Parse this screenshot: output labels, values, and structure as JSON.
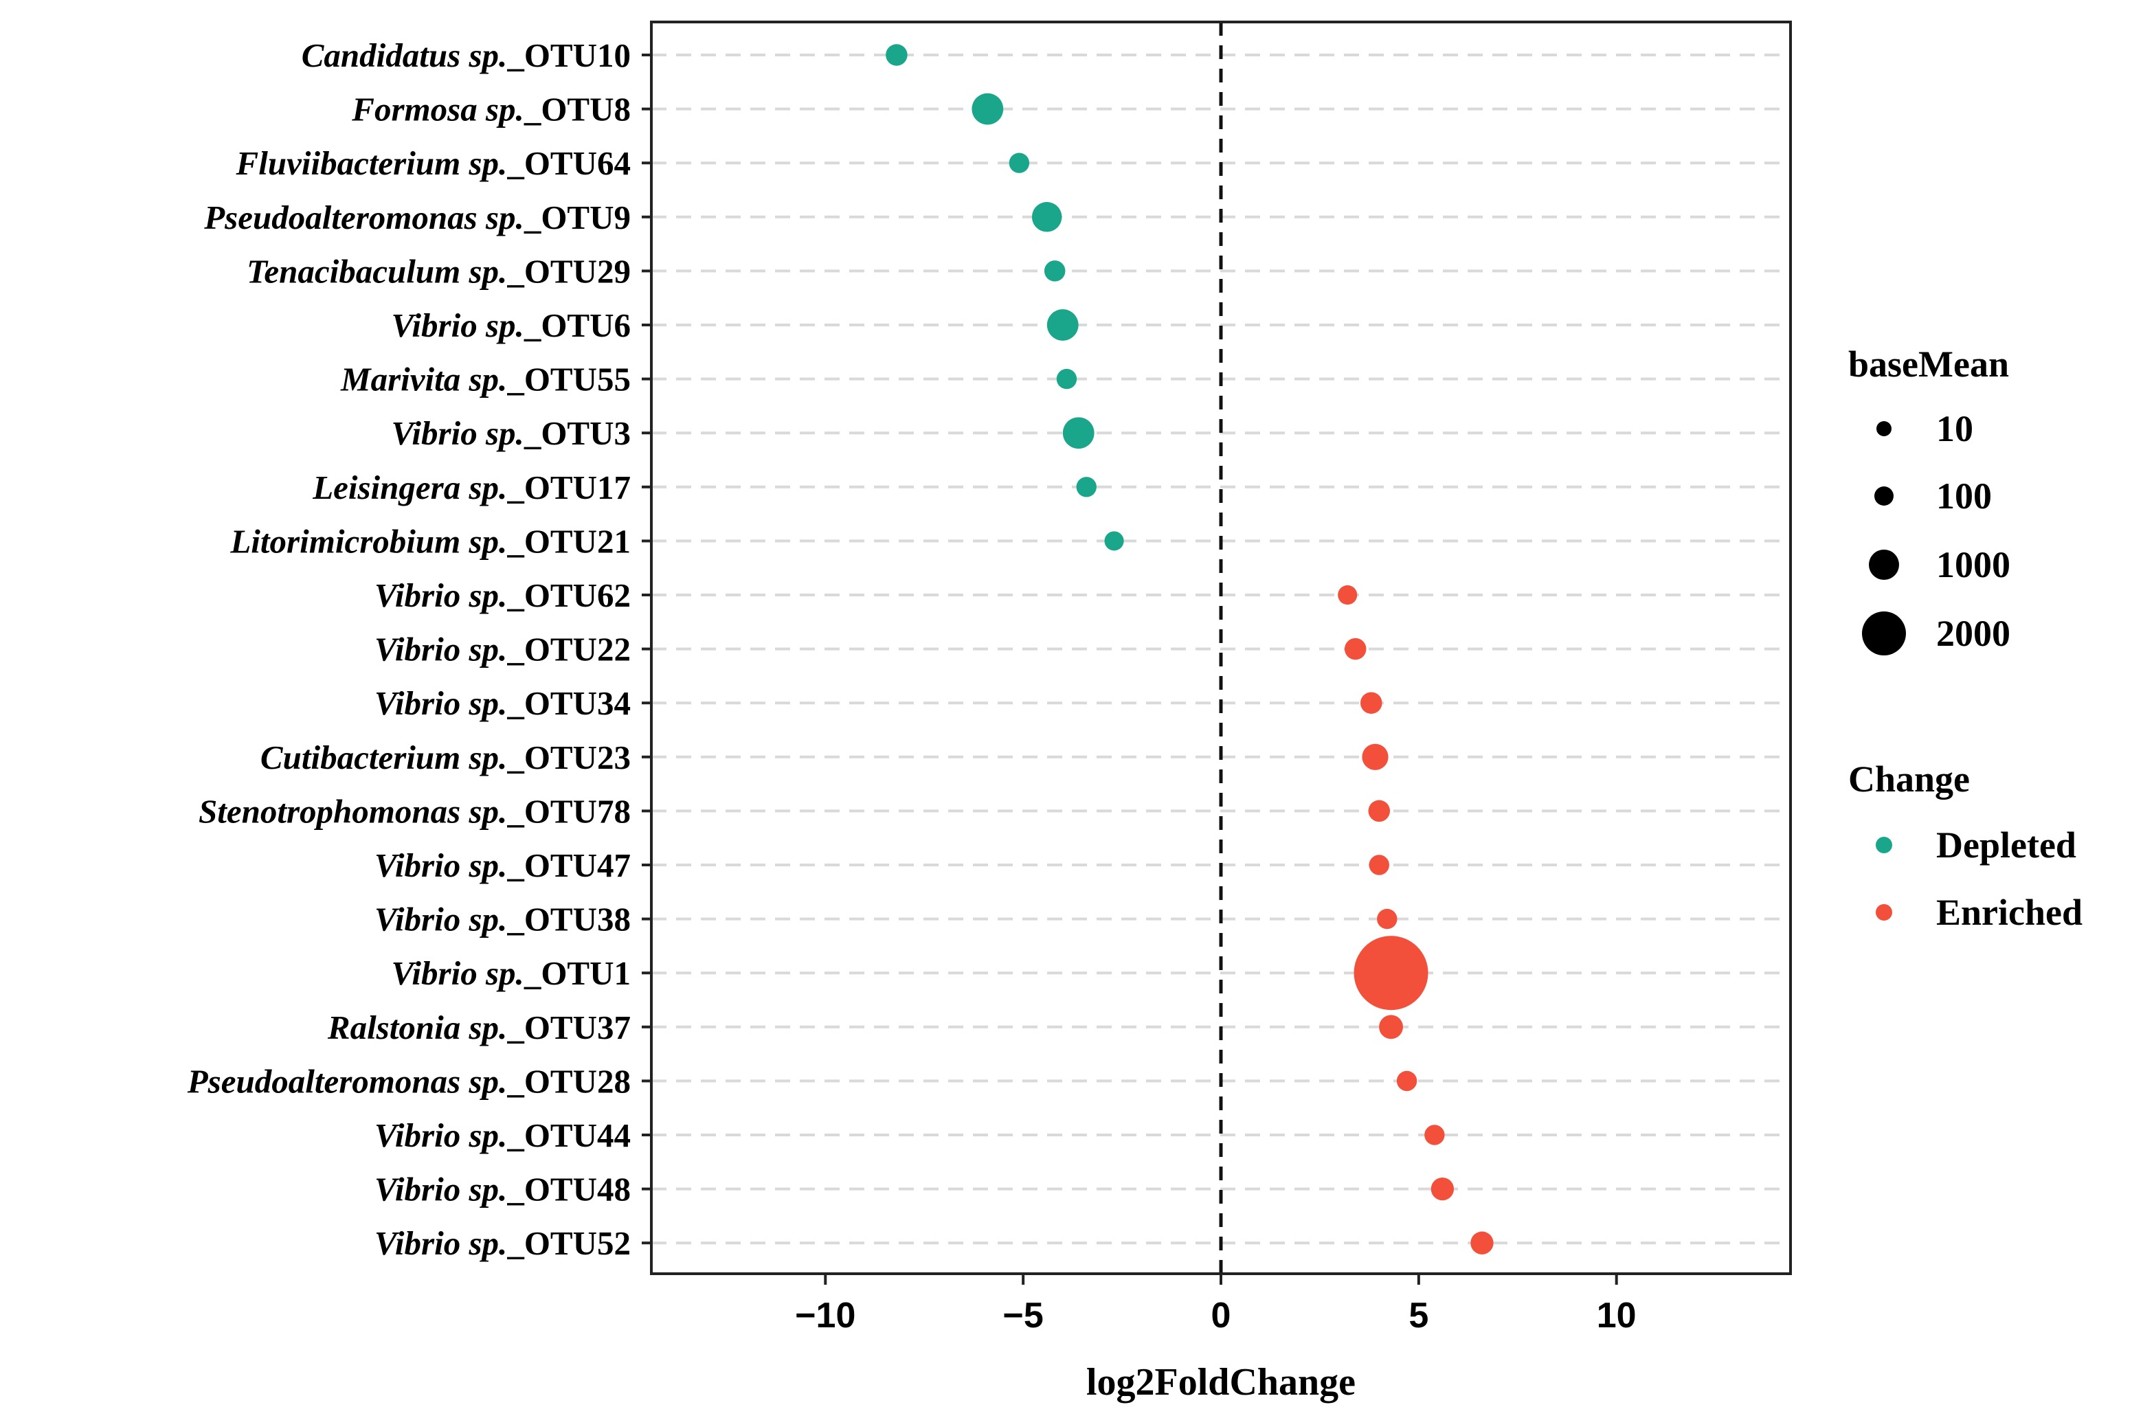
{
  "chart_data": {
    "type": "scatter",
    "title": "",
    "xlabel": "log2FoldChange",
    "ylabel": "",
    "xlim": [
      -14.4,
      14.4
    ],
    "xticks": [
      -10,
      -5,
      0,
      5,
      10
    ],
    "xtick_labels": [
      "−10",
      "−5",
      "0",
      "5",
      "10"
    ],
    "reference_line": 0,
    "grid": "horizontal dashed",
    "colors": {
      "Depleted": "#1aa68a",
      "Enriched": "#f2503b"
    },
    "points": [
      {
        "genus": "Candidatus sp.",
        "otu": "_OTU10",
        "log2FoldChange": -8.2,
        "baseMean": 60,
        "change": "Depleted"
      },
      {
        "genus": "Formosa sp.",
        "otu": "_OTU8",
        "log2FoldChange": -5.9,
        "baseMean": 300,
        "change": "Depleted"
      },
      {
        "genus": "Fluviibacterium sp.",
        "otu": "_OTU64",
        "log2FoldChange": -5.1,
        "baseMean": 40,
        "change": "Depleted"
      },
      {
        "genus": "Pseudoalteromonas sp.",
        "otu": "_OTU9",
        "log2FoldChange": -4.4,
        "baseMean": 250,
        "change": "Depleted"
      },
      {
        "genus": "Tenacibaculum sp.",
        "otu": "_OTU29",
        "log2FoldChange": -4.2,
        "baseMean": 50,
        "change": "Depleted"
      },
      {
        "genus": "Vibrio sp.",
        "otu": "_OTU6",
        "log2FoldChange": -4.0,
        "baseMean": 300,
        "change": "Depleted"
      },
      {
        "genus": "Marivita sp.",
        "otu": "_OTU55",
        "log2FoldChange": -3.9,
        "baseMean": 40,
        "change": "Depleted"
      },
      {
        "genus": "Vibrio sp.",
        "otu": "_OTU3",
        "log2FoldChange": -3.6,
        "baseMean": 300,
        "change": "Depleted"
      },
      {
        "genus": "Leisingera sp.",
        "otu": "_OTU17",
        "log2FoldChange": -3.4,
        "baseMean": 40,
        "change": "Depleted"
      },
      {
        "genus": "Litorimicrobium sp.",
        "otu": "_OTU21",
        "log2FoldChange": -2.7,
        "baseMean": 30,
        "change": "Depleted"
      },
      {
        "genus": "Vibrio sp.",
        "otu": "_OTU62",
        "log2FoldChange": 3.2,
        "baseMean": 30,
        "change": "Enriched"
      },
      {
        "genus": "Vibrio sp.",
        "otu": "_OTU22",
        "log2FoldChange": 3.4,
        "baseMean": 60,
        "change": "Enriched"
      },
      {
        "genus": "Vibrio sp.",
        "otu": "_OTU34",
        "log2FoldChange": 3.8,
        "baseMean": 60,
        "change": "Enriched"
      },
      {
        "genus": "Cutibacterium sp.",
        "otu": "_OTU23",
        "log2FoldChange": 3.9,
        "baseMean": 150,
        "change": "Enriched"
      },
      {
        "genus": "Stenotrophomonas sp.",
        "otu": "_OTU78",
        "log2FoldChange": 4.0,
        "baseMean": 60,
        "change": "Enriched"
      },
      {
        "genus": "Vibrio sp.",
        "otu": "_OTU47",
        "log2FoldChange": 4.0,
        "baseMean": 40,
        "change": "Enriched"
      },
      {
        "genus": "Vibrio sp.",
        "otu": "_OTU38",
        "log2FoldChange": 4.2,
        "baseMean": 40,
        "change": "Enriched"
      },
      {
        "genus": "Vibrio sp.",
        "otu": "_OTU1",
        "log2FoldChange": 4.3,
        "baseMean": 3500,
        "change": "Enriched"
      },
      {
        "genus": "Ralstonia sp.",
        "otu": "_OTU37",
        "log2FoldChange": 4.3,
        "baseMean": 100,
        "change": "Enriched"
      },
      {
        "genus": "Pseudoalteromonas sp.",
        "otu": "_OTU28",
        "log2FoldChange": 4.7,
        "baseMean": 40,
        "change": "Enriched"
      },
      {
        "genus": "Vibrio sp.",
        "otu": "_OTU44",
        "log2FoldChange": 5.4,
        "baseMean": 40,
        "change": "Enriched"
      },
      {
        "genus": "Vibrio sp.",
        "otu": "_OTU48",
        "log2FoldChange": 5.6,
        "baseMean": 80,
        "change": "Enriched"
      },
      {
        "genus": "Vibrio sp.",
        "otu": "_OTU52",
        "log2FoldChange": 6.6,
        "baseMean": 80,
        "change": "Enriched"
      }
    ],
    "legend": {
      "size_title": "baseMean",
      "size_entries": [
        {
          "label": "10",
          "value": 10
        },
        {
          "label": "100",
          "value": 100
        },
        {
          "label": "1000",
          "value": 1000
        },
        {
          "label": "2000",
          "value": 2000
        }
      ],
      "color_title": "Change",
      "color_entries": [
        {
          "label": "Depleted",
          "key": "Depleted"
        },
        {
          "label": "Enriched",
          "key": "Enriched"
        }
      ]
    }
  }
}
